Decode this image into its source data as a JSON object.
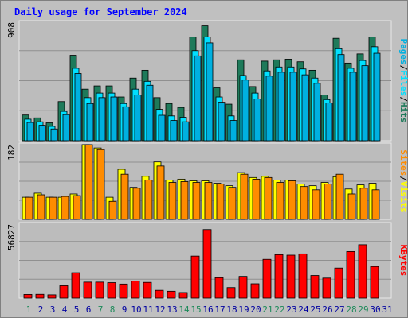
{
  "title": "Daily usage for September 2024",
  "colors": {
    "hits": "#1e7a5a",
    "files": "#00e0ff",
    "pages": "#00b0e0",
    "visits": "#ffff00",
    "sites": "#ff8c00",
    "kbytes": "#ff0000",
    "background": "#c0c0c0",
    "panel": "#bcbcbc",
    "weekend_day": "#1e8a5a",
    "weekday": "#0000a0"
  },
  "chart_data": [
    {
      "type": "bar",
      "panel": "top",
      "ylabel_parts": [
        "Pages",
        "Files",
        "Hits"
      ],
      "y_tick": "908",
      "ylim": [
        0,
        908
      ],
      "categories": [
        "1",
        "2",
        "3",
        "4",
        "5",
        "6",
        "7",
        "8",
        "9",
        "10",
        "11",
        "12",
        "13",
        "14",
        "15",
        "16",
        "17",
        "18",
        "19",
        "20",
        "21",
        "22",
        "23",
        "24",
        "25",
        "26",
        "27",
        "28",
        "29",
        "30"
      ],
      "series": [
        {
          "name": "Hits",
          "values": [
            197,
            175,
            137,
            300,
            655,
            395,
            420,
            420,
            335,
            480,
            540,
            330,
            285,
            255,
            795,
            880,
            405,
            280,
            620,
            415,
            610,
            620,
            625,
            605,
            540,
            350,
            785,
            595,
            665,
            795
          ]
        },
        {
          "name": "Files",
          "values": [
            165,
            145,
            110,
            225,
            555,
            330,
            365,
            365,
            285,
            395,
            455,
            240,
            190,
            180,
            690,
            795,
            335,
            190,
            500,
            365,
            535,
            565,
            565,
            550,
            480,
            315,
            705,
            555,
            615,
            720
          ]
        },
        {
          "name": "Pages",
          "values": [
            140,
            118,
            90,
            200,
            515,
            285,
            330,
            335,
            260,
            350,
            425,
            195,
            155,
            145,
            650,
            750,
            295,
            155,
            465,
            320,
            495,
            525,
            525,
            505,
            440,
            290,
            660,
            525,
            575,
            670
          ]
        }
      ]
    },
    {
      "type": "bar",
      "panel": "middle",
      "ylabel_parts": [
        "Sites",
        "Visits"
      ],
      "y_tick": "182",
      "ylim": [
        0,
        182
      ],
      "categories": [
        "1",
        "2",
        "3",
        "4",
        "5",
        "6",
        "7",
        "8",
        "9",
        "10",
        "11",
        "12",
        "13",
        "14",
        "15",
        "16",
        "17",
        "18",
        "19",
        "20",
        "21",
        "22",
        "23",
        "24",
        "25",
        "26",
        "27",
        "28",
        "29",
        "30"
      ],
      "series": [
        {
          "name": "Visits",
          "values": [
            54,
            64,
            54,
            54,
            62,
            182,
            174,
            54,
            122,
            78,
            105,
            140,
            96,
            98,
            94,
            94,
            88,
            82,
            114,
            102,
            105,
            96,
            96,
            86,
            82,
            90,
            104,
            74,
            84,
            88
          ]
        },
        {
          "name": "Sites",
          "values": [
            54,
            60,
            54,
            56,
            58,
            182,
            170,
            44,
            110,
            76,
            96,
            130,
            90,
            92,
            90,
            90,
            86,
            78,
            110,
            98,
            102,
            90,
            94,
            80,
            72,
            86,
            110,
            62,
            76,
            72
          ]
        }
      ]
    },
    {
      "type": "bar",
      "panel": "bottom",
      "ylabel_parts": [
        "KBytes"
      ],
      "y_tick": "56827",
      "ylim": [
        0,
        56827
      ],
      "categories": [
        "1",
        "2",
        "3",
        "4",
        "5",
        "6",
        "7",
        "8",
        "9",
        "10",
        "11",
        "12",
        "13",
        "14",
        "15",
        "16",
        "17",
        "18",
        "19",
        "20",
        "21",
        "22",
        "23",
        "24",
        "25",
        "26",
        "27",
        "28",
        "29",
        "30"
      ],
      "series": [
        {
          "name": "KBytes",
          "values": [
            2800,
            2900,
            2500,
            9500,
            19500,
            12300,
            12300,
            11900,
            10800,
            13100,
            12100,
            6000,
            5300,
            4300,
            32300,
            52700,
            15700,
            8100,
            16700,
            11000,
            29800,
            33400,
            33000,
            34000,
            17400,
            15400,
            23100,
            35800,
            41000,
            24300
          ]
        }
      ]
    }
  ],
  "x_axis": {
    "days": [
      "1",
      "2",
      "3",
      "4",
      "5",
      "6",
      "7",
      "8",
      "9",
      "10",
      "11",
      "12",
      "13",
      "14",
      "15",
      "16",
      "17",
      "18",
      "19",
      "20",
      "21",
      "22",
      "23",
      "24",
      "25",
      "26",
      "27",
      "28",
      "29",
      "30",
      "31"
    ],
    "weekend": [
      1,
      7,
      8,
      14,
      15,
      21,
      22,
      28,
      29
    ]
  }
}
